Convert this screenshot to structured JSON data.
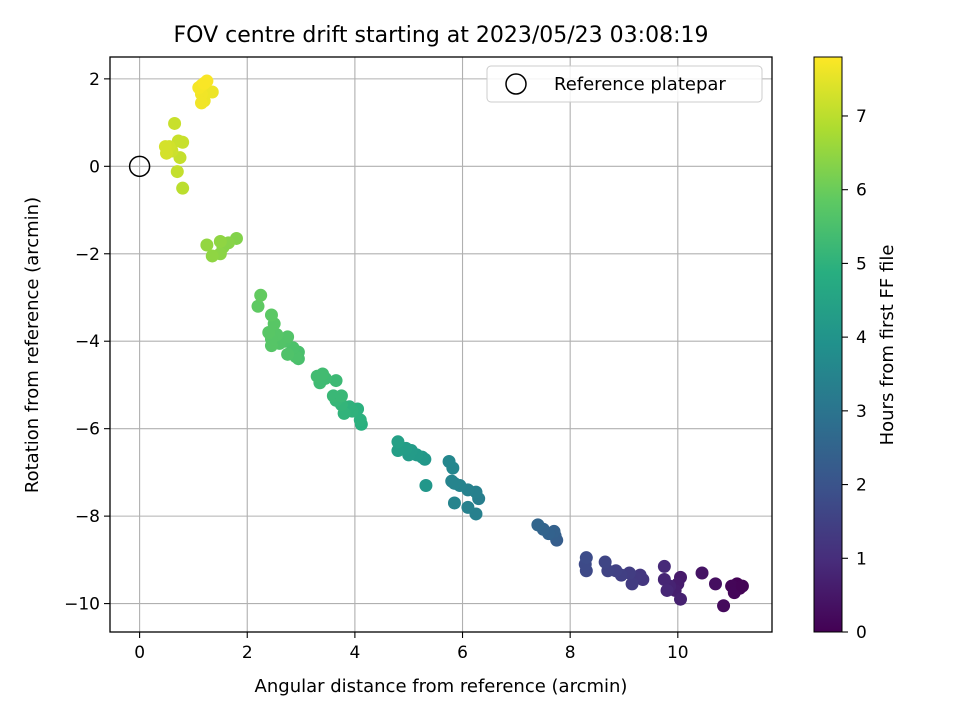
{
  "chart_data": {
    "type": "scatter",
    "title": "FOV centre drift starting at 2023/05/23 03:08:19",
    "xlabel": "Angular distance from reference (arcmin)",
    "ylabel": "Rotation from reference (arcmin)",
    "xlim": [
      -0.55,
      11.75
    ],
    "ylim": [
      -10.65,
      2.5
    ],
    "xticks": [
      0,
      2,
      4,
      6,
      8,
      10
    ],
    "yticks": [
      2,
      0,
      -2,
      -4,
      -6,
      -8,
      -10
    ],
    "grid": true,
    "legend": {
      "placement": "top-right",
      "entries": [
        "Reference platepar"
      ]
    },
    "reference": {
      "x": 0,
      "y": 0
    },
    "colorbar": {
      "label": "Hours from first FF file",
      "colormap": "viridis",
      "range": [
        0,
        7.8
      ],
      "ticks": [
        0,
        1,
        2,
        3,
        4,
        5,
        6,
        7
      ]
    },
    "points": [
      [
        11.1,
        -9.55,
        0.05
      ],
      [
        11.15,
        -9.65,
        0.08
      ],
      [
        11.0,
        -9.6,
        0.1
      ],
      [
        11.05,
        -9.75,
        0.12
      ],
      [
        11.2,
        -9.6,
        0.06
      ],
      [
        10.85,
        -10.05,
        0.2
      ],
      [
        10.7,
        -9.55,
        0.3
      ],
      [
        10.45,
        -9.3,
        0.4
      ],
      [
        10.05,
        -9.4,
        0.55
      ],
      [
        10.0,
        -9.55,
        0.6
      ],
      [
        9.95,
        -9.7,
        0.65
      ],
      [
        10.05,
        -9.9,
        0.7
      ],
      [
        9.85,
        -9.6,
        0.75
      ],
      [
        9.75,
        -9.45,
        0.8
      ],
      [
        9.8,
        -9.7,
        0.85
      ],
      [
        9.75,
        -9.15,
        0.9
      ],
      [
        9.35,
        -9.45,
        1.2
      ],
      [
        9.3,
        -9.35,
        1.25
      ],
      [
        9.2,
        -9.4,
        1.3
      ],
      [
        9.15,
        -9.55,
        1.35
      ],
      [
        9.1,
        -9.3,
        1.4
      ],
      [
        8.95,
        -9.35,
        1.45
      ],
      [
        8.85,
        -9.25,
        1.5
      ],
      [
        8.7,
        -9.25,
        1.55
      ],
      [
        8.65,
        -9.05,
        1.6
      ],
      [
        8.3,
        -9.25,
        1.7
      ],
      [
        8.28,
        -9.1,
        1.75
      ],
      [
        8.3,
        -8.95,
        1.8
      ],
      [
        7.75,
        -8.55,
        2.3
      ],
      [
        7.72,
        -8.45,
        2.35
      ],
      [
        7.7,
        -8.35,
        2.4
      ],
      [
        7.6,
        -8.4,
        2.45
      ],
      [
        7.5,
        -8.3,
        2.5
      ],
      [
        7.4,
        -8.2,
        2.55
      ],
      [
        6.3,
        -7.6,
        3.3
      ],
      [
        6.25,
        -7.45,
        3.35
      ],
      [
        6.25,
        -7.95,
        3.35
      ],
      [
        6.1,
        -7.4,
        3.4
      ],
      [
        6.1,
        -7.8,
        3.4
      ],
      [
        5.95,
        -7.3,
        3.45
      ],
      [
        5.85,
        -7.25,
        3.5
      ],
      [
        5.85,
        -7.7,
        3.5
      ],
      [
        5.8,
        -7.2,
        3.5
      ],
      [
        5.82,
        -6.9,
        3.55
      ],
      [
        5.75,
        -6.75,
        3.6
      ],
      [
        5.3,
        -6.7,
        4.1
      ],
      [
        5.32,
        -7.3,
        4.1
      ],
      [
        5.25,
        -6.65,
        4.15
      ],
      [
        5.15,
        -6.6,
        4.2
      ],
      [
        5.05,
        -6.5,
        4.25
      ],
      [
        5.0,
        -6.6,
        4.25
      ],
      [
        4.95,
        -6.45,
        4.3
      ],
      [
        4.8,
        -6.5,
        4.35
      ],
      [
        4.8,
        -6.3,
        4.4
      ],
      [
        4.12,
        -5.9,
        4.9
      ],
      [
        4.1,
        -5.8,
        4.95
      ],
      [
        4.05,
        -5.55,
        4.95
      ],
      [
        3.95,
        -5.6,
        5.0
      ],
      [
        3.9,
        -5.5,
        5.0
      ],
      [
        3.8,
        -5.65,
        5.05
      ],
      [
        3.75,
        -5.45,
        5.1
      ],
      [
        3.65,
        -5.35,
        5.15
      ],
      [
        3.6,
        -5.25,
        5.2
      ],
      [
        3.75,
        -5.25,
        5.2
      ],
      [
        3.65,
        -4.9,
        5.25
      ],
      [
        3.45,
        -4.85,
        5.3
      ],
      [
        3.35,
        -4.95,
        5.3
      ],
      [
        3.3,
        -4.8,
        5.35
      ],
      [
        3.4,
        -4.75,
        5.35
      ],
      [
        2.95,
        -4.4,
        5.5
      ],
      [
        2.95,
        -4.25,
        5.5
      ],
      [
        2.9,
        -4.35,
        5.55
      ],
      [
        2.85,
        -4.15,
        5.55
      ],
      [
        2.75,
        -4.3,
        5.6
      ],
      [
        2.7,
        -4.0,
        5.6
      ],
      [
        2.75,
        -3.9,
        5.65
      ],
      [
        2.6,
        -4.05,
        5.65
      ],
      [
        2.55,
        -3.85,
        5.7
      ],
      [
        2.45,
        -4.1,
        5.7
      ],
      [
        2.45,
        -3.95,
        5.7
      ],
      [
        2.4,
        -3.8,
        5.75
      ],
      [
        2.5,
        -3.6,
        5.75
      ],
      [
        2.45,
        -3.4,
        5.8
      ],
      [
        2.2,
        -3.2,
        5.85
      ],
      [
        2.25,
        -2.95,
        5.9
      ],
      [
        1.8,
        -1.65,
        6.3
      ],
      [
        1.65,
        -1.75,
        6.35
      ],
      [
        1.55,
        -1.85,
        6.35
      ],
      [
        1.5,
        -2.0,
        6.4
      ],
      [
        1.5,
        -1.72,
        6.45
      ],
      [
        1.35,
        -2.05,
        6.45
      ],
      [
        1.25,
        -1.8,
        6.5
      ],
      [
        0.8,
        -0.5,
        7.0
      ],
      [
        0.75,
        0.2,
        7.1
      ],
      [
        0.7,
        -0.12,
        7.1
      ],
      [
        0.8,
        0.55,
        7.15
      ],
      [
        0.72,
        0.58,
        7.15
      ],
      [
        0.65,
        0.98,
        7.15
      ],
      [
        0.6,
        0.35,
        7.2
      ],
      [
        0.55,
        0.45,
        7.25
      ],
      [
        0.5,
        0.3,
        7.3
      ],
      [
        0.48,
        0.45,
        7.3
      ],
      [
        1.25,
        1.7,
        7.55
      ],
      [
        1.2,
        1.5,
        7.6
      ],
      [
        1.35,
        1.7,
        7.6
      ],
      [
        1.15,
        1.65,
        7.65
      ],
      [
        1.15,
        1.45,
        7.65
      ],
      [
        1.1,
        1.8,
        7.7
      ],
      [
        1.15,
        1.85,
        7.7
      ],
      [
        1.2,
        1.9,
        7.75
      ],
      [
        1.25,
        1.95,
        7.75
      ]
    ]
  }
}
